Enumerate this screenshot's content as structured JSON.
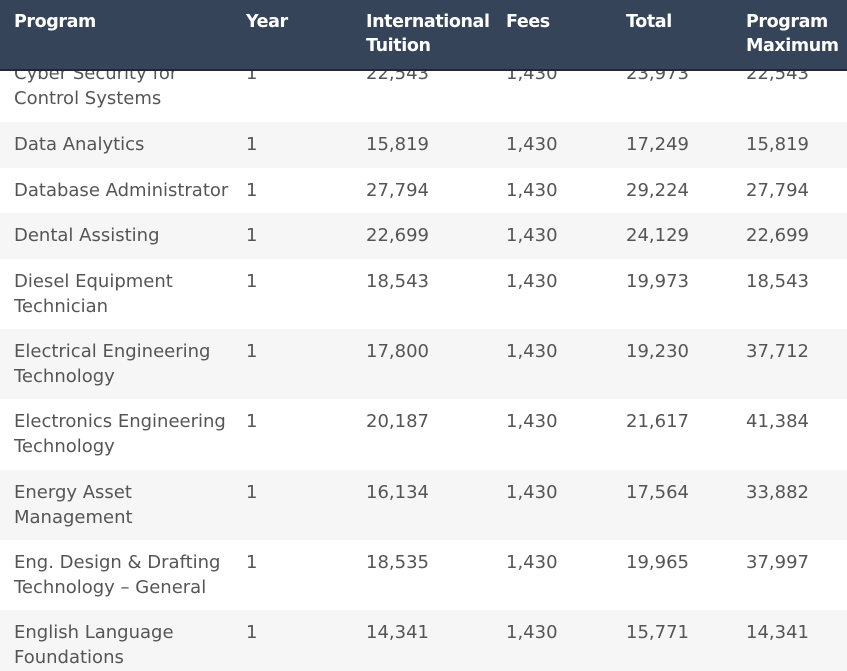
{
  "columns": [
    "Program",
    "Year",
    "International\nTuition",
    "Fees",
    "Total",
    "Program\nMaximum"
  ],
  "rows": [
    {
      "program": "Cyber Security for\nControl Systems",
      "year": "1",
      "tuition": "22,543",
      "fees": "1,430",
      "total": "23,973",
      "maximum": "22,543"
    },
    {
      "program": "Data Analytics",
      "year": "1",
      "tuition": "15,819",
      "fees": "1,430",
      "total": "17,249",
      "maximum": "15,819"
    },
    {
      "program": "Database Administrator",
      "year": "1",
      "tuition": "27,794",
      "fees": "1,430",
      "total": "29,224",
      "maximum": "27,794"
    },
    {
      "program": "Dental Assisting",
      "year": "1",
      "tuition": "22,699",
      "fees": "1,430",
      "total": "24,129",
      "maximum": "22,699"
    },
    {
      "program": "Diesel Equipment\nTechnician",
      "year": "1",
      "tuition": "18,543",
      "fees": "1,430",
      "total": "19,973",
      "maximum": "18,543"
    },
    {
      "program": "Electrical Engineering\nTechnology",
      "year": "1",
      "tuition": "17,800",
      "fees": "1,430",
      "total": "19,230",
      "maximum": "37,712"
    },
    {
      "program": "Electronics Engineering\nTechnology",
      "year": "1",
      "tuition": "20,187",
      "fees": "1,430",
      "total": "21,617",
      "maximum": "41,384"
    },
    {
      "program": "Energy Asset\nManagement",
      "year": "1",
      "tuition": "16,134",
      "fees": "1,430",
      "total": "17,564",
      "maximum": "33,882"
    },
    {
      "program": "Eng. Design & Drafting\nTechnology – General",
      "year": "1",
      "tuition": "18,535",
      "fees": "1,430",
      "total": "19,965",
      "maximum": "37,997"
    },
    {
      "program": "English Language\nFoundations",
      "year": "1",
      "tuition": "14,341",
      "fees": "1,430",
      "total": "15,771",
      "maximum": "14,341"
    }
  ]
}
